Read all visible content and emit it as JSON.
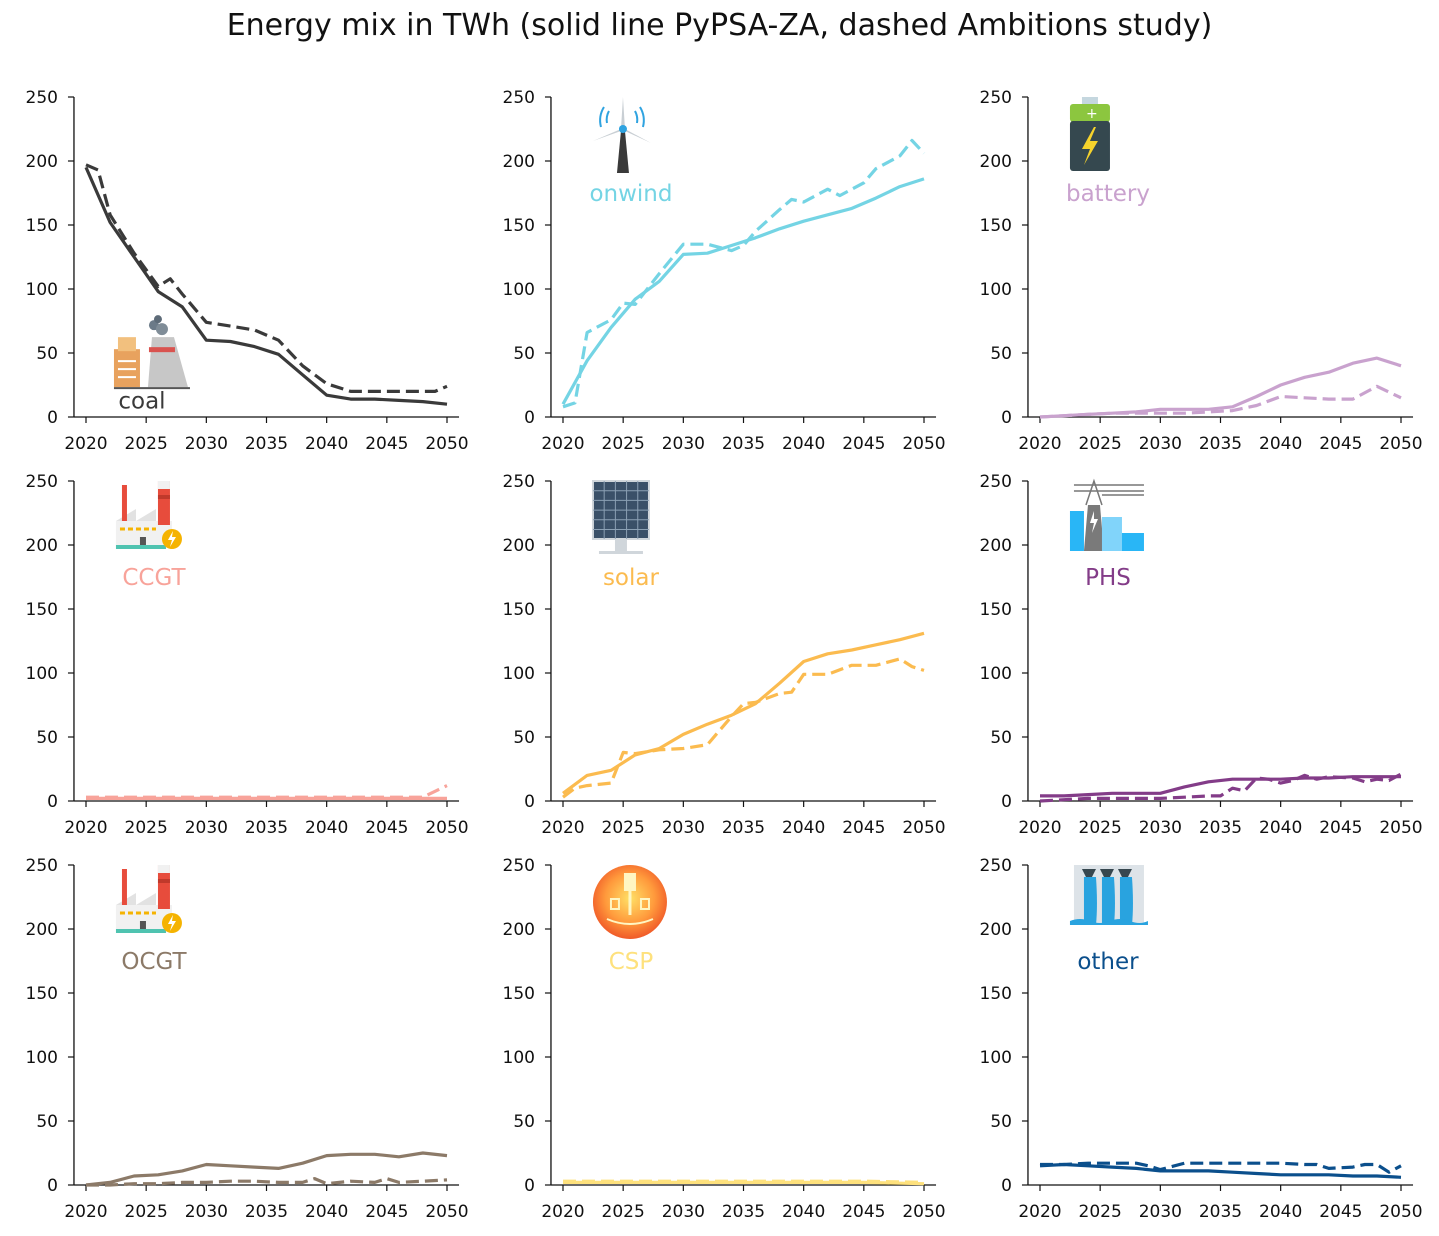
{
  "title": "Energy mix in TWh (solid line PyPSA-ZA, dashed Ambitions study)",
  "chart_data": [
    {
      "type": "line",
      "label": "coal",
      "color": "#3a3a3a",
      "icon": "coal-power-plant-icon",
      "x_ticks": [
        "2020",
        "2025",
        "2030",
        "2035",
        "2040",
        "2045",
        "2050"
      ],
      "y_ticks": [
        "0",
        "50",
        "100",
        "150",
        "200",
        "250"
      ],
      "xlim": [
        2019,
        2051
      ],
      "ylim": [
        0,
        250
      ],
      "series": [
        {
          "style": "solid",
          "x": [
            2020,
            2022,
            2024,
            2026,
            2028,
            2030,
            2032,
            2034,
            2036,
            2038,
            2040,
            2042,
            2044,
            2046,
            2048,
            2050
          ],
          "y": [
            195,
            152,
            125,
            98,
            86,
            60,
            59,
            55,
            49,
            33,
            17,
            14,
            14,
            13,
            12,
            10
          ]
        },
        {
          "style": "dashed",
          "x": [
            2020,
            2021,
            2022,
            2024,
            2026,
            2027,
            2028,
            2030,
            2032,
            2034,
            2036,
            2038,
            2040,
            2042,
            2044,
            2046,
            2048,
            2049,
            2050
          ],
          "y": [
            197,
            193,
            158,
            128,
            102,
            108,
            96,
            74,
            71,
            68,
            60,
            40,
            26,
            20,
            20,
            20,
            20,
            20,
            24
          ]
        }
      ]
    },
    {
      "type": "line",
      "label": "onwind",
      "color": "#74d4e4",
      "icon": "wind-turbine-icon",
      "x_ticks": [
        "2020",
        "2025",
        "2030",
        "2035",
        "2040",
        "2045",
        "2050"
      ],
      "y_ticks": [
        "0",
        "50",
        "100",
        "150",
        "200",
        "250"
      ],
      "xlim": [
        2019,
        2051
      ],
      "ylim": [
        0,
        250
      ],
      "series": [
        {
          "style": "solid",
          "x": [
            2020,
            2022,
            2024,
            2026,
            2028,
            2030,
            2032,
            2034,
            2036,
            2038,
            2040,
            2042,
            2044,
            2046,
            2048,
            2050
          ],
          "y": [
            10,
            44,
            70,
            92,
            106,
            127,
            128,
            134,
            140,
            147,
            153,
            158,
            163,
            171,
            180,
            186
          ]
        },
        {
          "style": "dashed",
          "x": [
            2020,
            2021,
            2022,
            2024,
            2025,
            2026,
            2028,
            2030,
            2032,
            2034,
            2035,
            2036,
            2038,
            2039,
            2040,
            2042,
            2043,
            2044,
            2045,
            2046,
            2047,
            2048,
            2049,
            2050
          ],
          "y": [
            8,
            11,
            66,
            76,
            89,
            88,
            112,
            135,
            135,
            130,
            134,
            145,
            162,
            170,
            168,
            178,
            173,
            178,
            183,
            194,
            199,
            204,
            216,
            206
          ]
        }
      ]
    },
    {
      "type": "line",
      "label": "battery",
      "color": "#c9a2ce",
      "icon": "battery-icon",
      "x_ticks": [
        "2020",
        "2025",
        "2030",
        "2035",
        "2040",
        "2045",
        "2050"
      ],
      "y_ticks": [
        "0",
        "50",
        "100",
        "150",
        "200",
        "250"
      ],
      "xlim": [
        2019,
        2051
      ],
      "ylim": [
        0,
        250
      ],
      "series": [
        {
          "style": "solid",
          "x": [
            2020,
            2022,
            2024,
            2026,
            2028,
            2030,
            2032,
            2034,
            2036,
            2038,
            2040,
            2042,
            2044,
            2046,
            2048,
            2050
          ],
          "y": [
            0,
            1,
            2,
            3,
            4,
            6,
            6,
            6,
            8,
            16,
            25,
            31,
            35,
            42,
            46,
            40
          ]
        },
        {
          "style": "dashed",
          "x": [
            2020,
            2022,
            2024,
            2026,
            2028,
            2030,
            2032,
            2034,
            2036,
            2038,
            2040,
            2042,
            2044,
            2046,
            2048,
            2050
          ],
          "y": [
            0,
            1,
            2,
            3,
            3,
            3,
            3,
            4,
            5,
            9,
            16,
            15,
            14,
            14,
            24,
            15
          ]
        }
      ]
    },
    {
      "type": "line",
      "label": "CCGT",
      "color": "#f8a39a",
      "icon": "gas-power-plant-icon",
      "x_ticks": [
        "2020",
        "2025",
        "2030",
        "2035",
        "2040",
        "2045",
        "2050"
      ],
      "y_ticks": [
        "0",
        "50",
        "100",
        "150",
        "200",
        "250"
      ],
      "xlim": [
        2019,
        2051
      ],
      "ylim": [
        0,
        250
      ],
      "series": [
        {
          "style": "solid",
          "x": [
            2020,
            2025,
            2030,
            2035,
            2040,
            2045,
            2050
          ],
          "y": [
            2,
            2,
            2,
            2,
            2,
            2,
            2
          ]
        },
        {
          "style": "dashed",
          "x": [
            2020,
            2025,
            2030,
            2035,
            2040,
            2045,
            2048,
            2050
          ],
          "y": [
            3,
            3,
            3,
            3,
            3,
            3,
            3,
            12
          ]
        }
      ]
    },
    {
      "type": "line",
      "label": "solar",
      "color": "#fbbb4f",
      "icon": "solar-panel-icon",
      "x_ticks": [
        "2020",
        "2025",
        "2030",
        "2035",
        "2040",
        "2045",
        "2050"
      ],
      "y_ticks": [
        "0",
        "50",
        "100",
        "150",
        "200",
        "250"
      ],
      "xlim": [
        2019,
        2051
      ],
      "ylim": [
        0,
        250
      ],
      "series": [
        {
          "style": "solid",
          "x": [
            2020,
            2022,
            2024,
            2026,
            2028,
            2030,
            2032,
            2034,
            2036,
            2038,
            2040,
            2042,
            2044,
            2046,
            2048,
            2050
          ],
          "y": [
            6,
            20,
            24,
            36,
            41,
            52,
            60,
            67,
            76,
            92,
            109,
            115,
            118,
            122,
            126,
            131
          ]
        },
        {
          "style": "dashed",
          "x": [
            2020,
            2021,
            2022,
            2024,
            2025,
            2026,
            2028,
            2030,
            2032,
            2034,
            2035,
            2036,
            2038,
            2039,
            2040,
            2042,
            2044,
            2046,
            2048,
            2049,
            2050
          ],
          "y": [
            3,
            10,
            12,
            14,
            38,
            37,
            40,
            41,
            44,
            66,
            76,
            77,
            84,
            85,
            99,
            99,
            106,
            106,
            111,
            105,
            102
          ]
        }
      ]
    },
    {
      "type": "line",
      "label": "PHS",
      "color": "#833c88",
      "icon": "pumped-hydro-icon",
      "x_ticks": [
        "2020",
        "2025",
        "2030",
        "2035",
        "2040",
        "2045",
        "2050"
      ],
      "y_ticks": [
        "0",
        "50",
        "100",
        "150",
        "200",
        "250"
      ],
      "xlim": [
        2019,
        2051
      ],
      "ylim": [
        0,
        250
      ],
      "series": [
        {
          "style": "solid",
          "x": [
            2020,
            2022,
            2024,
            2026,
            2028,
            2030,
            2032,
            2034,
            2036,
            2038,
            2040,
            2042,
            2044,
            2046,
            2048,
            2050
          ],
          "y": [
            4,
            4,
            5,
            6,
            6,
            6,
            11,
            15,
            17,
            17,
            17,
            18,
            18,
            19,
            19,
            19
          ]
        },
        {
          "style": "dashed",
          "x": [
            2020,
            2022,
            2024,
            2026,
            2028,
            2030,
            2032,
            2034,
            2035,
            2036,
            2037,
            2038,
            2039,
            2040,
            2041,
            2042,
            2043,
            2044,
            2046,
            2047,
            2048,
            2049,
            2050
          ],
          "y": [
            0,
            1,
            2,
            2,
            2,
            2,
            3,
            4,
            4,
            10,
            8,
            18,
            17,
            14,
            16,
            20,
            17,
            19,
            18,
            15,
            17,
            16,
            21
          ]
        }
      ]
    },
    {
      "type": "line",
      "label": "OCGT",
      "color": "#8c7a68",
      "icon": "gas-power-plant-icon",
      "x_ticks": [
        "2020",
        "2025",
        "2030",
        "2035",
        "2040",
        "2045",
        "2050"
      ],
      "y_ticks": [
        "0",
        "50",
        "100",
        "150",
        "200",
        "250"
      ],
      "xlim": [
        2019,
        2051
      ],
      "ylim": [
        0,
        250
      ],
      "series": [
        {
          "style": "solid",
          "x": [
            2020,
            2022,
            2024,
            2026,
            2028,
            2030,
            2032,
            2034,
            2036,
            2038,
            2040,
            2042,
            2044,
            2046,
            2048,
            2050
          ],
          "y": [
            0,
            2,
            7,
            8,
            11,
            16,
            15,
            14,
            13,
            17,
            23,
            24,
            24,
            22,
            25,
            23
          ]
        },
        {
          "style": "dashed",
          "x": [
            2020,
            2022,
            2024,
            2026,
            2028,
            2030,
            2032,
            2034,
            2036,
            2038,
            2039,
            2040,
            2042,
            2044,
            2045,
            2046,
            2048,
            2050
          ],
          "y": [
            0,
            0,
            1,
            1,
            2,
            2,
            3,
            3,
            2,
            2,
            5,
            1,
            3,
            2,
            5,
            2,
            3,
            4
          ]
        }
      ]
    },
    {
      "type": "line",
      "label": "CSP",
      "color": "#fee17d",
      "icon": "csp-sun-icon",
      "x_ticks": [
        "2020",
        "2025",
        "2030",
        "2035",
        "2040",
        "2045",
        "2050"
      ],
      "y_ticks": [
        "0",
        "50",
        "100",
        "150",
        "200",
        "250"
      ],
      "xlim": [
        2019,
        2051
      ],
      "ylim": [
        0,
        250
      ],
      "series": [
        {
          "style": "solid",
          "x": [
            2020,
            2025,
            2030,
            2035,
            2040,
            2045,
            2050
          ],
          "y": [
            2,
            2,
            2,
            2,
            2,
            2,
            1
          ]
        },
        {
          "style": "dashed",
          "x": [
            2020,
            2025,
            2030,
            2035,
            2040,
            2045,
            2050
          ],
          "y": [
            3,
            3,
            3,
            3,
            3,
            3,
            2
          ]
        }
      ]
    },
    {
      "type": "line",
      "label": "other",
      "color": "#0b4f8c",
      "icon": "hydro-dam-icon",
      "x_ticks": [
        "2020",
        "2025",
        "2030",
        "2035",
        "2040",
        "2045",
        "2050"
      ],
      "y_ticks": [
        "0",
        "50",
        "100",
        "150",
        "200",
        "250"
      ],
      "xlim": [
        2019,
        2051
      ],
      "ylim": [
        0,
        250
      ],
      "series": [
        {
          "style": "solid",
          "x": [
            2020,
            2022,
            2024,
            2026,
            2028,
            2030,
            2032,
            2034,
            2036,
            2038,
            2040,
            2042,
            2044,
            2046,
            2048,
            2050
          ],
          "y": [
            15,
            16,
            15,
            14,
            13,
            11,
            11,
            11,
            10,
            9,
            8,
            8,
            8,
            7,
            7,
            6
          ]
        },
        {
          "style": "dashed",
          "x": [
            2020,
            2022,
            2024,
            2026,
            2028,
            2029,
            2030,
            2032,
            2034,
            2036,
            2038,
            2040,
            2042,
            2043,
            2044,
            2046,
            2047,
            2048,
            2049,
            2050
          ],
          "y": [
            16,
            16,
            17,
            17,
            17,
            15,
            12,
            17,
            17,
            17,
            17,
            17,
            16,
            16,
            13,
            14,
            16,
            16,
            10,
            15
          ]
        }
      ]
    }
  ]
}
